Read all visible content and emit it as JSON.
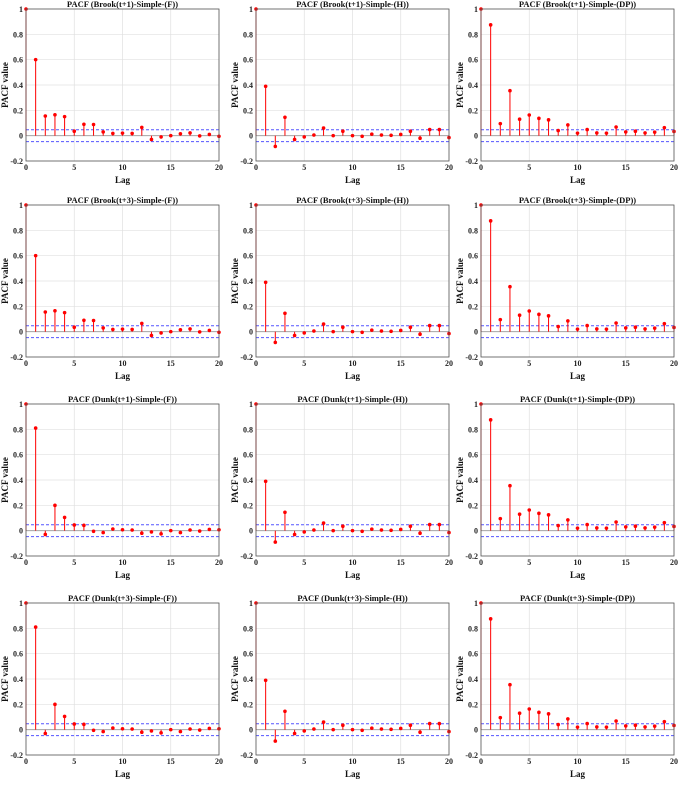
{
  "chart_data": [
    {
      "type": "stem",
      "title": "PACF (Brook(t+1)-Simple-(F))",
      "xlabel": "Lag",
      "ylabel": "PACF value",
      "xlim": [
        0,
        20
      ],
      "ylim": [
        -0.2,
        1
      ],
      "xticks": [
        0,
        5,
        10,
        15,
        20
      ],
      "yticks": [
        -0.2,
        0,
        0.2,
        0.4,
        0.6,
        0.8,
        1
      ],
      "confidence_bound": 0.047,
      "x": [
        0,
        1,
        2,
        3,
        4,
        5,
        6,
        7,
        8,
        9,
        10,
        11,
        12,
        13,
        14,
        15,
        16,
        17,
        18,
        19,
        20
      ],
      "values": [
        1,
        0.6,
        0.155,
        0.165,
        0.15,
        0.035,
        0.09,
        0.088,
        0.03,
        0.018,
        0.02,
        0.018,
        0.065,
        -0.03,
        -0.01,
        0,
        0.015,
        0.022,
        -0.002,
        0.01,
        -0.005
      ]
    },
    {
      "type": "stem",
      "title": "PACF (Brook(t+1)-Simple-(H))",
      "xlabel": "Lag",
      "ylabel": "PACF value",
      "xlim": [
        0,
        20
      ],
      "ylim": [
        -0.2,
        1
      ],
      "xticks": [
        0,
        5,
        10,
        15,
        20
      ],
      "yticks": [
        -0.2,
        0,
        0.2,
        0.4,
        0.6,
        0.8,
        1
      ],
      "confidence_bound": 0.047,
      "x": [
        0,
        1,
        2,
        3,
        4,
        5,
        6,
        7,
        8,
        9,
        10,
        11,
        12,
        13,
        14,
        15,
        16,
        17,
        18,
        19,
        20
      ],
      "values": [
        1,
        0.39,
        -0.085,
        0.145,
        -0.03,
        -0.01,
        0.005,
        0.06,
        0,
        0.035,
        0,
        -0.005,
        0.012,
        0.005,
        0.003,
        0.01,
        0.035,
        -0.02,
        0.048,
        0.048,
        -0.015
      ]
    },
    {
      "type": "stem",
      "title": "PACF (Brook(t+1)-Simple-(DP))",
      "xlabel": "Lag",
      "ylabel": "PACF value",
      "xlim": [
        0,
        20
      ],
      "ylim": [
        -0.2,
        1
      ],
      "xticks": [
        0,
        5,
        10,
        15,
        20
      ],
      "yticks": [
        -0.2,
        0,
        0.2,
        0.4,
        0.6,
        0.8,
        1
      ],
      "confidence_bound": 0.047,
      "x": [
        0,
        1,
        2,
        3,
        4,
        5,
        6,
        7,
        8,
        9,
        10,
        11,
        12,
        13,
        14,
        15,
        16,
        17,
        18,
        19,
        20
      ],
      "values": [
        1,
        0.875,
        0.095,
        0.355,
        0.13,
        0.163,
        0.137,
        0.125,
        0.04,
        0.085,
        0.02,
        0.048,
        0.022,
        0.02,
        0.068,
        0.03,
        0.035,
        0.022,
        0.028,
        0.063,
        0.033
      ]
    },
    {
      "type": "stem",
      "title": "PACF (Brook(t+3)-Simple-(F))",
      "xlabel": "Lag",
      "ylabel": "PACF value",
      "xlim": [
        0,
        20
      ],
      "ylim": [
        -0.2,
        1
      ],
      "xticks": [
        0,
        5,
        10,
        15,
        20
      ],
      "yticks": [
        -0.2,
        0,
        0.2,
        0.4,
        0.6,
        0.8,
        1
      ],
      "confidence_bound": 0.047,
      "x": [
        0,
        1,
        2,
        3,
        4,
        5,
        6,
        7,
        8,
        9,
        10,
        11,
        12,
        13,
        14,
        15,
        16,
        17,
        18,
        19,
        20
      ],
      "values": [
        1,
        0.6,
        0.155,
        0.165,
        0.15,
        0.035,
        0.09,
        0.088,
        0.03,
        0.018,
        0.02,
        0.018,
        0.065,
        -0.03,
        -0.01,
        0,
        0.015,
        0.022,
        -0.002,
        0.01,
        -0.005
      ]
    },
    {
      "type": "stem",
      "title": "PACF (Brook(t+3)-Simple-(H))",
      "xlabel": "Lag",
      "ylabel": "PACF value",
      "xlim": [
        0,
        20
      ],
      "ylim": [
        -0.2,
        1
      ],
      "xticks": [
        0,
        5,
        10,
        15,
        20
      ],
      "yticks": [
        -0.2,
        0,
        0.2,
        0.4,
        0.6,
        0.8,
        1
      ],
      "confidence_bound": 0.047,
      "x": [
        0,
        1,
        2,
        3,
        4,
        5,
        6,
        7,
        8,
        9,
        10,
        11,
        12,
        13,
        14,
        15,
        16,
        17,
        18,
        19,
        20
      ],
      "values": [
        1,
        0.39,
        -0.085,
        0.145,
        -0.03,
        -0.01,
        0.005,
        0.06,
        0,
        0.035,
        0,
        -0.005,
        0.012,
        0.005,
        0.003,
        0.01,
        0.035,
        -0.02,
        0.048,
        0.048,
        -0.015
      ]
    },
    {
      "type": "stem",
      "title": "PACF (Brook(t+3)-Simple-(DP))",
      "xlabel": "Lag",
      "ylabel": "PACF value",
      "xlim": [
        0,
        20
      ],
      "ylim": [
        -0.2,
        1
      ],
      "xticks": [
        0,
        5,
        10,
        15,
        20
      ],
      "yticks": [
        -0.2,
        0,
        0.2,
        0.4,
        0.6,
        0.8,
        1
      ],
      "confidence_bound": 0.047,
      "x": [
        0,
        1,
        2,
        3,
        4,
        5,
        6,
        7,
        8,
        9,
        10,
        11,
        12,
        13,
        14,
        15,
        16,
        17,
        18,
        19,
        20
      ],
      "values": [
        1,
        0.875,
        0.095,
        0.355,
        0.13,
        0.163,
        0.137,
        0.125,
        0.04,
        0.085,
        0.02,
        0.048,
        0.022,
        0.02,
        0.068,
        0.03,
        0.035,
        0.022,
        0.028,
        0.063,
        0.033
      ]
    },
    {
      "type": "stem",
      "title": "PACF (Dunk(t+1)-Simple-(F))",
      "xlabel": "Lag",
      "ylabel": "PACF value",
      "xlim": [
        0,
        20
      ],
      "ylim": [
        -0.2,
        1
      ],
      "xticks": [
        0,
        5,
        10,
        15,
        20
      ],
      "yticks": [
        -0.2,
        0,
        0.2,
        0.4,
        0.6,
        0.8,
        1
      ],
      "confidence_bound": 0.047,
      "x": [
        0,
        1,
        2,
        3,
        4,
        5,
        6,
        7,
        8,
        9,
        10,
        11,
        12,
        13,
        14,
        15,
        16,
        17,
        18,
        19,
        20
      ],
      "values": [
        1,
        0.81,
        -0.03,
        0.2,
        0.105,
        0.045,
        0.042,
        -0.005,
        -0.015,
        0.013,
        0.007,
        0.005,
        -0.02,
        -0.01,
        -0.025,
        0,
        -0.015,
        0.005,
        -0.003,
        0.01,
        0.007
      ]
    },
    {
      "type": "stem",
      "title": "PACF (Dunk(t+1)-Simple-(H))",
      "xlabel": "Lag",
      "ylabel": "PACF value",
      "xlim": [
        0,
        20
      ],
      "ylim": [
        -0.2,
        1
      ],
      "xticks": [
        0,
        5,
        10,
        15,
        20
      ],
      "yticks": [
        -0.2,
        0,
        0.2,
        0.4,
        0.6,
        0.8,
        1
      ],
      "confidence_bound": 0.047,
      "x": [
        0,
        1,
        2,
        3,
        4,
        5,
        6,
        7,
        8,
        9,
        10,
        11,
        12,
        13,
        14,
        15,
        16,
        17,
        18,
        19,
        20
      ],
      "values": [
        1,
        0.39,
        -0.09,
        0.145,
        -0.03,
        -0.01,
        0.005,
        0.06,
        0,
        0.035,
        0,
        -0.005,
        0.012,
        0.005,
        0.003,
        0.01,
        0.035,
        -0.02,
        0.048,
        0.048,
        -0.015
      ]
    },
    {
      "type": "stem",
      "title": "PACF (Dunk(t+1)-Simple-(DP))",
      "xlabel": "Lag",
      "ylabel": "PACF value",
      "xlim": [
        0,
        20
      ],
      "ylim": [
        -0.2,
        1
      ],
      "xticks": [
        0,
        5,
        10,
        15,
        20
      ],
      "yticks": [
        -0.2,
        0,
        0.2,
        0.4,
        0.6,
        0.8,
        1
      ],
      "confidence_bound": 0.047,
      "x": [
        0,
        1,
        2,
        3,
        4,
        5,
        6,
        7,
        8,
        9,
        10,
        11,
        12,
        13,
        14,
        15,
        16,
        17,
        18,
        19,
        20
      ],
      "values": [
        1,
        0.875,
        0.095,
        0.355,
        0.13,
        0.163,
        0.137,
        0.125,
        0.04,
        0.085,
        0.02,
        0.048,
        0.022,
        0.02,
        0.068,
        0.03,
        0.035,
        0.022,
        0.028,
        0.063,
        0.033
      ]
    },
    {
      "type": "stem",
      "title": "PACF (Dunk(t+3)-Simple-(F))",
      "xlabel": "Lag",
      "ylabel": "PACF value",
      "xlim": [
        0,
        20
      ],
      "ylim": [
        -0.2,
        1
      ],
      "xticks": [
        0,
        5,
        10,
        15,
        20
      ],
      "yticks": [
        -0.2,
        0,
        0.2,
        0.4,
        0.6,
        0.8,
        1
      ],
      "confidence_bound": 0.047,
      "x": [
        0,
        1,
        2,
        3,
        4,
        5,
        6,
        7,
        8,
        9,
        10,
        11,
        12,
        13,
        14,
        15,
        16,
        17,
        18,
        19,
        20
      ],
      "values": [
        1,
        0.81,
        -0.03,
        0.2,
        0.105,
        0.045,
        0.042,
        -0.005,
        -0.015,
        0.013,
        0.007,
        0.005,
        -0.02,
        -0.01,
        -0.025,
        0,
        -0.015,
        0.005,
        -0.003,
        0.01,
        0.007
      ]
    },
    {
      "type": "stem",
      "title": "PACF (Dunk(t+3)-Simple-(H))",
      "xlabel": "Lag",
      "ylabel": "PACF value",
      "xlim": [
        0,
        20
      ],
      "ylim": [
        -0.2,
        1
      ],
      "xticks": [
        0,
        5,
        10,
        15,
        20
      ],
      "yticks": [
        -0.2,
        0,
        0.2,
        0.4,
        0.6,
        0.8,
        1
      ],
      "confidence_bound": 0.047,
      "x": [
        0,
        1,
        2,
        3,
        4,
        5,
        6,
        7,
        8,
        9,
        10,
        11,
        12,
        13,
        14,
        15,
        16,
        17,
        18,
        19,
        20
      ],
      "values": [
        1,
        0.39,
        -0.09,
        0.145,
        -0.03,
        -0.01,
        0.005,
        0.06,
        0,
        0.035,
        0,
        -0.005,
        0.012,
        0.005,
        0.003,
        0.01,
        0.035,
        -0.02,
        0.048,
        0.048,
        -0.015
      ]
    },
    {
      "type": "stem",
      "title": "PACF (Dunk(t+3)-Simple-(DP))",
      "xlabel": "Lag",
      "ylabel": "PACF value",
      "xlim": [
        0,
        20
      ],
      "ylim": [
        -0.2,
        1
      ],
      "xticks": [
        0,
        5,
        10,
        15,
        20
      ],
      "yticks": [
        -0.2,
        0,
        0.2,
        0.4,
        0.6,
        0.8,
        1
      ],
      "confidence_bound": 0.047,
      "x": [
        0,
        1,
        2,
        3,
        4,
        5,
        6,
        7,
        8,
        9,
        10,
        11,
        12,
        13,
        14,
        15,
        16,
        17,
        18,
        19,
        20
      ],
      "values": [
        1,
        0.875,
        0.095,
        0.355,
        0.13,
        0.163,
        0.137,
        0.125,
        0.04,
        0.085,
        0.02,
        0.048,
        0.022,
        0.02,
        0.068,
        0.03,
        0.035,
        0.022,
        0.028,
        0.063,
        0.033
      ]
    }
  ],
  "colors": {
    "stem": "#ff0000",
    "marker": "#ff0000",
    "bound": "#5555ff",
    "grid": "#e0e0e0",
    "axis": "#555555"
  }
}
